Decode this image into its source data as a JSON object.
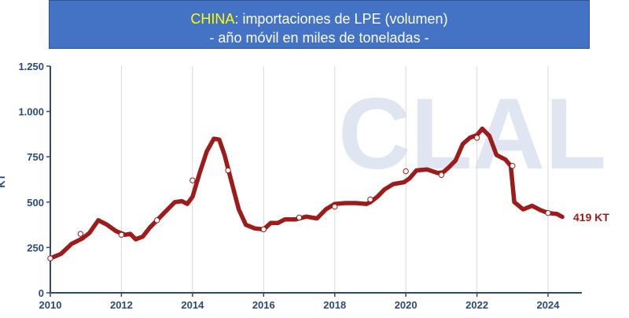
{
  "header": {
    "title_highlight": "CHINA",
    "title_rest": ": importaciones de LPE (volumen)",
    "subtitle": "- año móvil en miles de toneladas -"
  },
  "watermark": "CLAL",
  "colors": {
    "title_bg": "#4472c4",
    "title_highlight": "#ffff00",
    "line": "#9c1c1c",
    "axis_text": "#2b4a7a"
  },
  "chart_data": {
    "type": "line",
    "title": "CHINA: importaciones de LPE (volumen)",
    "subtitle": "- año móvil en miles de toneladas -",
    "ylabel": "KT",
    "xlim": [
      2010,
      2024.95
    ],
    "ylim": [
      0,
      1250
    ],
    "yticks": [
      0,
      250,
      500,
      750,
      1000,
      1250
    ],
    "ytick_labels": [
      "0",
      "250",
      "500",
      "750",
      "1.000",
      "1.250"
    ],
    "xticks": [
      2010,
      2012,
      2014,
      2016,
      2018,
      2020,
      2022,
      2024
    ],
    "xtick_labels": [
      "2010",
      "2012",
      "2014",
      "2016",
      "2018",
      "2020",
      "2022",
      "2024"
    ],
    "grid": "vertical",
    "end_label": "419 KT",
    "series": [
      {
        "values": [
          [
            2010.0,
            190
          ],
          [
            2010.3,
            215
          ],
          [
            2010.6,
            270
          ],
          [
            2010.9,
            300
          ],
          [
            2011.1,
            330
          ],
          [
            2011.35,
            400
          ],
          [
            2011.6,
            375
          ],
          [
            2011.85,
            340
          ],
          [
            2012.1,
            320
          ],
          [
            2012.25,
            325
          ],
          [
            2012.4,
            295
          ],
          [
            2012.6,
            310
          ],
          [
            2012.8,
            360
          ],
          [
            2013.0,
            400
          ],
          [
            2013.2,
            440
          ],
          [
            2013.5,
            500
          ],
          [
            2013.7,
            505
          ],
          [
            2013.85,
            490
          ],
          [
            2014.0,
            530
          ],
          [
            2014.2,
            660
          ],
          [
            2014.4,
            780
          ],
          [
            2014.6,
            850
          ],
          [
            2014.75,
            845
          ],
          [
            2014.9,
            760
          ],
          [
            2015.1,
            610
          ],
          [
            2015.3,
            460
          ],
          [
            2015.5,
            375
          ],
          [
            2015.75,
            355
          ],
          [
            2016.0,
            350
          ],
          [
            2016.2,
            385
          ],
          [
            2016.4,
            385
          ],
          [
            2016.6,
            405
          ],
          [
            2016.9,
            405
          ],
          [
            2017.2,
            420
          ],
          [
            2017.5,
            410
          ],
          [
            2017.75,
            460
          ],
          [
            2018.0,
            490
          ],
          [
            2018.3,
            495
          ],
          [
            2018.6,
            495
          ],
          [
            2018.9,
            490
          ],
          [
            2019.0,
            500
          ],
          [
            2019.2,
            530
          ],
          [
            2019.4,
            570
          ],
          [
            2019.65,
            600
          ],
          [
            2019.95,
            610
          ],
          [
            2020.1,
            630
          ],
          [
            2020.3,
            675
          ],
          [
            2020.6,
            680
          ],
          [
            2020.9,
            660
          ],
          [
            2021.05,
            665
          ],
          [
            2021.2,
            690
          ],
          [
            2021.4,
            730
          ],
          [
            2021.6,
            820
          ],
          [
            2021.8,
            855
          ],
          [
            2022.0,
            870
          ],
          [
            2022.15,
            905
          ],
          [
            2022.35,
            865
          ],
          [
            2022.55,
            760
          ],
          [
            2022.8,
            735
          ],
          [
            2022.95,
            700
          ],
          [
            2023.05,
            500
          ],
          [
            2023.3,
            460
          ],
          [
            2023.55,
            480
          ],
          [
            2023.8,
            455
          ],
          [
            2024.0,
            440
          ],
          [
            2024.25,
            435
          ],
          [
            2024.4,
            419
          ]
        ],
        "markers": [
          [
            2010.0,
            190
          ],
          [
            2010.85,
            325
          ],
          [
            2012.0,
            320
          ],
          [
            2013.0,
            400
          ],
          [
            2014.0,
            620
          ],
          [
            2015.0,
            675
          ],
          [
            2016.0,
            350
          ],
          [
            2017.0,
            415
          ],
          [
            2018.0,
            475
          ],
          [
            2019.0,
            515
          ],
          [
            2020.0,
            670
          ],
          [
            2021.0,
            650
          ],
          [
            2022.0,
            855
          ],
          [
            2023.0,
            700
          ],
          [
            2024.0,
            440
          ]
        ]
      }
    ]
  }
}
